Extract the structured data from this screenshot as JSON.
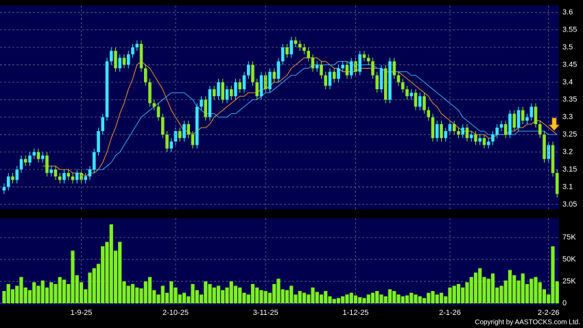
{
  "chart_data": [
    {
      "type": "candlestick",
      "open": [
        3.09,
        3.1,
        3.13,
        3.12,
        3.15,
        3.18,
        3.17,
        3.19,
        3.2,
        3.18,
        3.19,
        3.14,
        3.15,
        3.13,
        3.12,
        3.14,
        3.13,
        3.12,
        3.14,
        3.12,
        3.13,
        3.15,
        3.2,
        3.26,
        3.3,
        3.46,
        3.49,
        3.44,
        3.47,
        3.45,
        3.48,
        3.5,
        3.51,
        3.44,
        3.4,
        3.34,
        3.33,
        3.3,
        3.25,
        3.21,
        3.23,
        3.26,
        3.24,
        3.28,
        3.25,
        3.22,
        3.33,
        3.35,
        3.3,
        3.38,
        3.36,
        3.4,
        3.35,
        3.38,
        3.36,
        3.4,
        3.38,
        3.42,
        3.45,
        3.4,
        3.36,
        3.42,
        3.38,
        3.43,
        3.41,
        3.46,
        3.5,
        3.48,
        3.52,
        3.51,
        3.5,
        3.49,
        3.47,
        3.44,
        3.45,
        3.42,
        3.39,
        3.43,
        3.41,
        3.44,
        3.45,
        3.42,
        3.46,
        3.43,
        3.48,
        3.47,
        3.46,
        3.42,
        3.38,
        3.44,
        3.35,
        3.46,
        3.42,
        3.4,
        3.38,
        3.36,
        3.37,
        3.33,
        3.36,
        3.32,
        3.3,
        3.24,
        3.28,
        3.24,
        3.26,
        3.28,
        3.26,
        3.25,
        3.27,
        3.24,
        3.25,
        3.23,
        3.24,
        3.22,
        3.23,
        3.25,
        3.27,
        3.28,
        3.25,
        3.31,
        3.27,
        3.32,
        3.29,
        3.3,
        3.33,
        3.28,
        3.25,
        3.18,
        3.22,
        3.14
      ],
      "high": [
        3.11,
        3.14,
        3.14,
        3.16,
        3.19,
        3.19,
        3.2,
        3.21,
        3.21,
        3.2,
        3.2,
        3.16,
        3.16,
        3.14,
        3.15,
        3.15,
        3.14,
        3.15,
        3.15,
        3.14,
        3.16,
        3.21,
        3.27,
        3.31,
        3.47,
        3.5,
        3.5,
        3.48,
        3.48,
        3.49,
        3.51,
        3.52,
        3.52,
        3.45,
        3.41,
        3.35,
        3.34,
        3.31,
        3.26,
        3.24,
        3.27,
        3.27,
        3.29,
        3.29,
        3.26,
        3.34,
        3.36,
        3.36,
        3.39,
        3.39,
        3.41,
        3.41,
        3.39,
        3.39,
        3.41,
        3.41,
        3.43,
        3.46,
        3.46,
        3.41,
        3.43,
        3.43,
        3.44,
        3.44,
        3.47,
        3.51,
        3.51,
        3.53,
        3.53,
        3.52,
        3.51,
        3.5,
        3.48,
        3.46,
        3.46,
        3.43,
        3.44,
        3.44,
        3.45,
        3.46,
        3.46,
        3.47,
        3.47,
        3.49,
        3.49,
        3.48,
        3.47,
        3.43,
        3.45,
        3.45,
        3.47,
        3.47,
        3.43,
        3.41,
        3.39,
        3.38,
        3.38,
        3.37,
        3.37,
        3.33,
        3.31,
        3.29,
        3.29,
        3.27,
        3.29,
        3.29,
        3.27,
        3.28,
        3.28,
        3.26,
        3.26,
        3.25,
        3.25,
        3.24,
        3.26,
        3.28,
        3.29,
        3.29,
        3.32,
        3.32,
        3.33,
        3.33,
        3.31,
        3.34,
        3.34,
        3.29,
        3.26,
        3.23,
        3.23,
        3.15
      ],
      "low": [
        3.08,
        3.09,
        3.11,
        3.11,
        3.14,
        3.16,
        3.16,
        3.18,
        3.17,
        3.17,
        3.13,
        3.13,
        3.12,
        3.11,
        3.11,
        3.12,
        3.11,
        3.11,
        3.11,
        3.11,
        3.12,
        3.14,
        3.19,
        3.25,
        3.29,
        3.45,
        3.43,
        3.43,
        3.44,
        3.44,
        3.47,
        3.49,
        3.43,
        3.39,
        3.33,
        3.32,
        3.29,
        3.24,
        3.2,
        3.2,
        3.22,
        3.23,
        3.23,
        3.24,
        3.21,
        3.21,
        3.32,
        3.29,
        3.29,
        3.35,
        3.35,
        3.34,
        3.34,
        3.35,
        3.35,
        3.37,
        3.37,
        3.41,
        3.39,
        3.35,
        3.35,
        3.37,
        3.37,
        3.4,
        3.4,
        3.45,
        3.47,
        3.47,
        3.5,
        3.49,
        3.48,
        3.46,
        3.43,
        3.43,
        3.41,
        3.38,
        3.38,
        3.4,
        3.4,
        3.43,
        3.41,
        3.41,
        3.42,
        3.42,
        3.46,
        3.45,
        3.41,
        3.37,
        3.37,
        3.34,
        3.34,
        3.41,
        3.39,
        3.37,
        3.35,
        3.35,
        3.32,
        3.32,
        3.31,
        3.29,
        3.23,
        3.23,
        3.23,
        3.23,
        3.25,
        3.25,
        3.24,
        3.24,
        3.23,
        3.23,
        3.22,
        3.22,
        3.21,
        3.21,
        3.22,
        3.24,
        3.26,
        3.24,
        3.24,
        3.26,
        3.26,
        3.28,
        3.28,
        3.29,
        3.27,
        3.24,
        3.17,
        3.17,
        3.13,
        3.07
      ],
      "close": [
        3.1,
        3.13,
        3.12,
        3.15,
        3.18,
        3.17,
        3.19,
        3.2,
        3.18,
        3.19,
        3.14,
        3.15,
        3.13,
        3.12,
        3.14,
        3.13,
        3.12,
        3.14,
        3.12,
        3.13,
        3.15,
        3.2,
        3.26,
        3.3,
        3.46,
        3.49,
        3.44,
        3.47,
        3.45,
        3.48,
        3.5,
        3.51,
        3.44,
        3.4,
        3.34,
        3.33,
        3.3,
        3.25,
        3.21,
        3.23,
        3.26,
        3.24,
        3.28,
        3.25,
        3.22,
        3.33,
        3.35,
        3.3,
        3.38,
        3.36,
        3.4,
        3.35,
        3.38,
        3.36,
        3.4,
        3.38,
        3.42,
        3.45,
        3.4,
        3.36,
        3.42,
        3.38,
        3.43,
        3.41,
        3.46,
        3.5,
        3.48,
        3.52,
        3.51,
        3.5,
        3.49,
        3.47,
        3.44,
        3.45,
        3.42,
        3.39,
        3.43,
        3.41,
        3.44,
        3.45,
        3.42,
        3.46,
        3.43,
        3.48,
        3.47,
        3.46,
        3.42,
        3.38,
        3.44,
        3.35,
        3.46,
        3.42,
        3.4,
        3.38,
        3.36,
        3.37,
        3.33,
        3.36,
        3.32,
        3.3,
        3.24,
        3.28,
        3.24,
        3.26,
        3.28,
        3.26,
        3.25,
        3.27,
        3.24,
        3.25,
        3.23,
        3.24,
        3.22,
        3.23,
        3.25,
        3.27,
        3.28,
        3.25,
        3.31,
        3.27,
        3.32,
        3.29,
        3.3,
        3.33,
        3.28,
        3.25,
        3.18,
        3.22,
        3.14,
        3.08
      ],
      "up_color": "#3de3ff",
      "down_color": "#8ee626",
      "lines": [
        {
          "color": "#f0962a",
          "values": [
            null,
            null,
            null,
            null,
            null,
            null,
            null,
            null,
            null,
            3.16,
            3.16,
            3.16,
            3.16,
            3.15,
            3.15,
            3.15,
            3.14,
            3.14,
            3.14,
            3.13,
            3.14,
            3.14,
            3.15,
            3.17,
            3.2,
            3.24,
            3.27,
            3.31,
            3.34,
            3.38,
            3.41,
            3.45,
            3.46,
            3.45,
            3.44,
            3.42,
            3.4,
            3.38,
            3.35,
            3.32,
            3.3,
            3.28,
            3.26,
            3.26,
            3.25,
            3.26,
            3.27,
            3.27,
            3.28,
            3.3,
            3.31,
            3.32,
            3.33,
            3.34,
            3.35,
            3.36,
            3.36,
            3.37,
            3.37,
            3.37,
            3.38,
            3.38,
            3.39,
            3.4,
            3.4,
            3.41,
            3.42,
            3.44,
            3.45,
            3.46,
            3.47,
            3.47,
            3.47,
            3.47,
            3.46,
            3.46,
            3.45,
            3.44,
            3.44,
            3.43,
            3.43,
            3.43,
            3.43,
            3.44,
            3.44,
            3.44,
            3.44,
            3.44,
            3.44,
            3.43,
            3.43,
            3.43,
            3.43,
            3.42,
            3.41,
            3.4,
            3.39,
            3.38,
            3.37,
            3.36,
            3.34,
            3.33,
            3.31,
            3.3,
            3.29,
            3.28,
            3.27,
            3.26,
            3.26,
            3.26,
            3.25,
            3.25,
            3.25,
            3.24,
            3.24,
            3.25,
            3.25,
            3.25,
            3.26,
            3.26,
            3.27,
            3.27,
            3.28,
            3.28,
            3.29,
            3.29,
            3.28,
            3.27,
            3.26,
            3.25
          ]
        },
        {
          "color": "#3fa9f5",
          "values": [
            null,
            null,
            null,
            null,
            null,
            null,
            null,
            null,
            null,
            null,
            null,
            null,
            null,
            null,
            null,
            null,
            null,
            null,
            null,
            3.15,
            3.15,
            3.15,
            3.15,
            3.15,
            3.16,
            3.17,
            3.19,
            3.2,
            3.22,
            3.24,
            3.26,
            3.28,
            3.3,
            3.31,
            3.32,
            3.33,
            3.34,
            3.35,
            3.36,
            3.37,
            3.37,
            3.37,
            3.37,
            3.36,
            3.35,
            3.33,
            3.32,
            3.31,
            3.31,
            3.31,
            3.3,
            3.3,
            3.3,
            3.31,
            3.31,
            3.32,
            3.33,
            3.34,
            3.35,
            3.35,
            3.36,
            3.37,
            3.37,
            3.38,
            3.39,
            3.4,
            3.41,
            3.42,
            3.42,
            3.43,
            3.44,
            3.44,
            3.45,
            3.45,
            3.45,
            3.45,
            3.45,
            3.45,
            3.46,
            3.46,
            3.46,
            3.45,
            3.45,
            3.45,
            3.45,
            3.45,
            3.45,
            3.44,
            3.44,
            3.43,
            3.43,
            3.43,
            3.43,
            3.43,
            3.43,
            3.42,
            3.42,
            3.41,
            3.4,
            3.39,
            3.38,
            3.37,
            3.36,
            3.35,
            3.34,
            3.33,
            3.32,
            3.3,
            3.29,
            3.28,
            3.27,
            3.26,
            3.26,
            3.25,
            3.25,
            3.25,
            3.25,
            3.25,
            3.25,
            3.25,
            3.26,
            3.26,
            3.26,
            3.26,
            3.26,
            3.26,
            3.26,
            3.25,
            3.25,
            3.25
          ]
        }
      ],
      "ylim": [
        3.036,
        3.62
      ],
      "yticks": [
        3.05,
        3.1,
        3.15,
        3.2,
        3.25,
        3.3,
        3.35,
        3.4,
        3.45,
        3.5,
        3.55,
        3.6
      ],
      "grid": true
    },
    {
      "type": "bar",
      "categories": [
        null,
        null,
        null,
        null,
        null,
        null,
        null,
        null,
        null,
        null,
        null,
        null,
        null,
        null,
        null,
        null,
        null,
        null,
        "1-9-25",
        null,
        null,
        null,
        null,
        null,
        null,
        null,
        null,
        null,
        null,
        null,
        null,
        null,
        null,
        null,
        null,
        null,
        null,
        null,
        null,
        null,
        "2-10-25",
        null,
        null,
        null,
        null,
        null,
        null,
        null,
        null,
        null,
        null,
        null,
        null,
        null,
        null,
        null,
        null,
        null,
        null,
        null,
        null,
        "3-11-25",
        null,
        null,
        null,
        null,
        null,
        null,
        null,
        null,
        null,
        null,
        null,
        null,
        null,
        null,
        null,
        null,
        null,
        null,
        null,
        null,
        "1-12-25",
        null,
        null,
        null,
        null,
        null,
        null,
        null,
        null,
        null,
        null,
        null,
        null,
        null,
        null,
        null,
        null,
        null,
        null,
        null,
        null,
        null,
        "2-1-26",
        null,
        null,
        null,
        null,
        null,
        null,
        null,
        null,
        null,
        null,
        null,
        null,
        null,
        null,
        null,
        null,
        null,
        null,
        null,
        null,
        null,
        null,
        "2-2-26",
        null,
        null
      ],
      "values": [
        14000,
        22000,
        16000,
        20000,
        30000,
        18000,
        15000,
        24000,
        20000,
        26000,
        18000,
        24000,
        22000,
        30000,
        27000,
        22000,
        60000,
        32000,
        24000,
        16000,
        35000,
        40000,
        45000,
        65000,
        70000,
        90000,
        60000,
        70000,
        25000,
        20000,
        22000,
        18000,
        17000,
        25000,
        30000,
        15000,
        10000,
        20000,
        12000,
        25000,
        18000,
        10000,
        12000,
        8000,
        22000,
        15000,
        10000,
        25000,
        22000,
        18000,
        20000,
        15000,
        18000,
        25000,
        20000,
        18000,
        12000,
        10000,
        22000,
        18000,
        15000,
        14000,
        12000,
        22000,
        28000,
        16000,
        15000,
        20000,
        10000,
        14000,
        12000,
        10000,
        18000,
        13000,
        10000,
        14000,
        8000,
        5000,
        6000,
        8000,
        10000,
        12000,
        9000,
        7000,
        6000,
        10000,
        12000,
        14000,
        10000,
        8000,
        16000,
        14000,
        10000,
        8000,
        9000,
        12000,
        10000,
        8000,
        6000,
        12000,
        14000,
        10000,
        12000,
        8000,
        18000,
        20000,
        22000,
        18000,
        24000,
        30000,
        35000,
        40000,
        30000,
        28000,
        34000,
        18000,
        20000,
        26000,
        38000,
        32000,
        26000,
        34000,
        22000,
        28000,
        30000,
        24000,
        16000,
        10000,
        65000,
        25000
      ],
      "color": "#7ef01e",
      "ylim": [
        0,
        97000
      ],
      "yticks": [
        0,
        {
          "value": 25000,
          "label": "25K"
        },
        {
          "value": 50000,
          "label": "50K"
        },
        {
          "value": 75000,
          "label": "75K"
        }
      ],
      "grid": true
    }
  ],
  "copyright": "Copyright by AASTOCKS.com Ltd."
}
